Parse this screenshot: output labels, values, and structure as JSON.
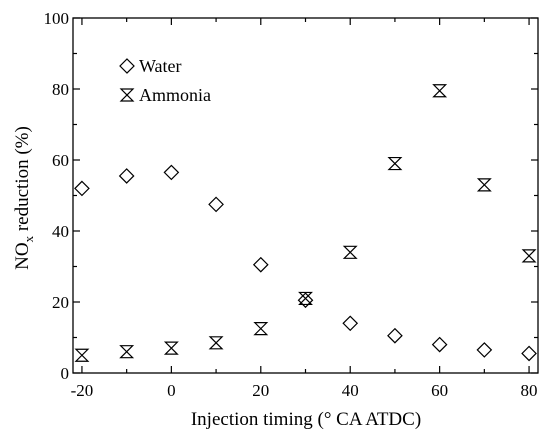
{
  "chart_data": {
    "type": "scatter",
    "title": "",
    "xlabel": "Injection timing (° CA ATDC)",
    "ylabel_main": "NO",
    "ylabel_sub": "x",
    "ylabel_rest": " reduction (%)",
    "xlim": [
      -22,
      82
    ],
    "ylim": [
      0,
      100
    ],
    "xticks": [
      -20,
      0,
      20,
      40,
      60,
      80
    ],
    "yticks": [
      0,
      20,
      40,
      60,
      80,
      100
    ],
    "grid": false,
    "legend_position": "top-left",
    "series": [
      {
        "name": "Water",
        "marker": "diamond",
        "x": [
          -20,
          -10,
          0,
          10,
          20,
          30,
          40,
          50,
          60,
          70,
          80
        ],
        "y": [
          52,
          55.5,
          56.5,
          47.5,
          30.5,
          20.5,
          14,
          10.5,
          8,
          6.5,
          5.5
        ]
      },
      {
        "name": "Ammonia",
        "marker": "hourglass",
        "x": [
          -20,
          -10,
          0,
          10,
          20,
          30,
          40,
          50,
          60,
          70,
          80
        ],
        "y": [
          5,
          6,
          7,
          8.5,
          12.5,
          21,
          34,
          59,
          79.5,
          53,
          33
        ]
      }
    ]
  }
}
